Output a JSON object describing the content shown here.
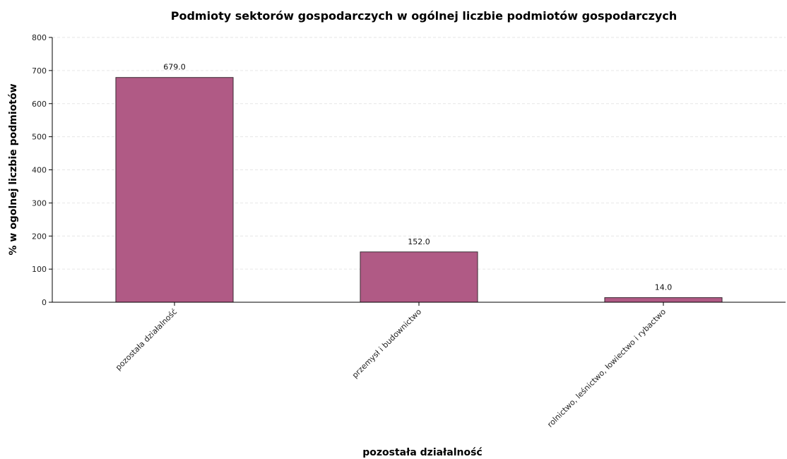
{
  "chart_data": {
    "type": "bar",
    "title": "Podmioty sektorów gospodarczych w ogólnej liczbie podmiotów gospodarczych",
    "xlabel": "pozostała działalność",
    "ylabel": "% w ogolnej liczbie podmiotów",
    "categories": [
      "pozostała działalność",
      "przemysł i budownictwo",
      "rolnictwo, leśnictwo, łowiectwo i rybactwo"
    ],
    "values": [
      679.0,
      152.0,
      14.0
    ],
    "data_labels": [
      "679.0",
      "152.0",
      "14.0"
    ],
    "ylim": [
      0,
      800
    ],
    "yticks": [
      0,
      100,
      200,
      300,
      400,
      500,
      600,
      700,
      800
    ],
    "grid": true,
    "legend": "none",
    "colors": {
      "bar": "#b05a85",
      "bar_edge": "#3a2a33",
      "grid": "#e6e6e6",
      "axis": "#000000"
    }
  }
}
